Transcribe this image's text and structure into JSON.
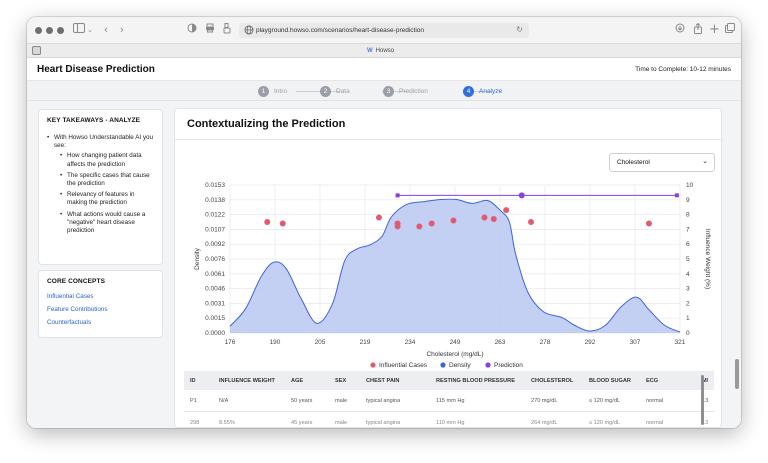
{
  "browser": {
    "url": "playground.howso.com/scenarios/heart-disease-prediction",
    "tab_title": "Howso",
    "tab_logo": "W"
  },
  "header": {
    "title": "Heart Disease Prediction",
    "time": "Time to Complete: 10-12 minutes"
  },
  "stepper": {
    "steps": [
      {
        "num": "1",
        "label": "Intro",
        "active": false
      },
      {
        "num": "2",
        "label": "Data",
        "active": false
      },
      {
        "num": "3",
        "label": "Prediction",
        "active": false
      },
      {
        "num": "4",
        "label": "Analyze",
        "active": true
      }
    ]
  },
  "sidebar": {
    "takeaways_title": "KEY TAKEAWAYS - ANALYZE",
    "takeaways_intro": "With Howso Understandable AI you see:",
    "takeaways": [
      "How changing patient data affects the prediction",
      "The specific cases that cause the prediction",
      "Relevancy of features in making the prediction",
      "What actions would cause a \"negative\" heart disease prediction"
    ],
    "concepts_title": "CORE CONCEPTS",
    "concepts": [
      "Influential Cases",
      "Feature Contributions",
      "Counterfactuals"
    ]
  },
  "content": {
    "title": "Contextualizing the Prediction",
    "feature_select": "Cholesterol"
  },
  "chart_data": {
    "type": "area",
    "xlabel": "Cholesterol (mg/dL)",
    "ylabel": "Density",
    "y2label": "Influence Weight (%)",
    "xlim": [
      176,
      321
    ],
    "ylim": [
      0,
      0.0153
    ],
    "y2lim": [
      0,
      10
    ],
    "x_ticks": [
      "176",
      "190",
      "205",
      "219",
      "234",
      "249",
      "263",
      "278",
      "292",
      "307",
      "321"
    ],
    "y_ticks": [
      "0.0000",
      "0.0015",
      "0.0031",
      "0.0046",
      "0.0061",
      "0.0076",
      "0.0092",
      "0.0107",
      "0.0122",
      "0.0138",
      "0.0153"
    ],
    "y2_ticks": [
      "0",
      "1",
      "2",
      "3",
      "4",
      "5",
      "6",
      "7",
      "8",
      "9",
      "10"
    ],
    "legend": [
      "Influential Cases",
      "Density",
      "Prediction"
    ],
    "colors": {
      "influential": "#e05a72",
      "density_fill": "#b9c8f2",
      "density_line": "#3f63d9",
      "prediction": "#8a3fe0"
    },
    "density": {
      "x": [
        176,
        181,
        186,
        190,
        194,
        199,
        204,
        209,
        213,
        217,
        221,
        225,
        228,
        233,
        239,
        244,
        249,
        254,
        259,
        263,
        266,
        268,
        272,
        277,
        283,
        287,
        292,
        297,
        302,
        307,
        311,
        316,
        321
      ],
      "y": [
        0.0007,
        0.0025,
        0.0058,
        0.0073,
        0.0067,
        0.0035,
        0.001,
        0.003,
        0.0075,
        0.0087,
        0.0091,
        0.01,
        0.012,
        0.0133,
        0.0136,
        0.0138,
        0.0138,
        0.0134,
        0.0137,
        0.0127,
        0.0115,
        0.0082,
        0.0042,
        0.0022,
        0.0016,
        0.0008,
        0.0002,
        0.0008,
        0.0027,
        0.0037,
        0.0024,
        0.0008,
        0.0001
      ]
    },
    "influential_cases": {
      "x": [
        188,
        193,
        224,
        230,
        230,
        237,
        241,
        248,
        258,
        261,
        265,
        273,
        311
      ],
      "y": [
        7.5,
        7.4,
        7.8,
        7.4,
        7.2,
        7.2,
        7.4,
        7.6,
        7.8,
        7.7,
        8.3,
        7.5,
        7.4
      ]
    },
    "prediction": {
      "x": [
        230,
        320
      ],
      "y": 9.3,
      "point": {
        "x": 270,
        "y": 9.3
      }
    }
  },
  "table": {
    "headers": [
      "ID",
      "INFLUENCE WEIGHT",
      "AGE",
      "SEX",
      "CHEST PAIN",
      "RESTING BLOOD PRESSURE",
      "CHOLESTEROL",
      "BLOOD SUGAR",
      "ECG",
      "M/"
    ],
    "rows": [
      [
        "P1",
        "N/A",
        "50 years",
        "male",
        "typical angina",
        "115 mm Hg",
        "270 mg/dL",
        "≤ 120 mg/dL",
        "normal",
        "13"
      ],
      [
        "298",
        "8.55%",
        "45 years",
        "male",
        "typical angina",
        "110 mm Hg",
        "264 mg/dL",
        "≤ 120 mg/dL",
        "normal",
        "13"
      ]
    ]
  }
}
